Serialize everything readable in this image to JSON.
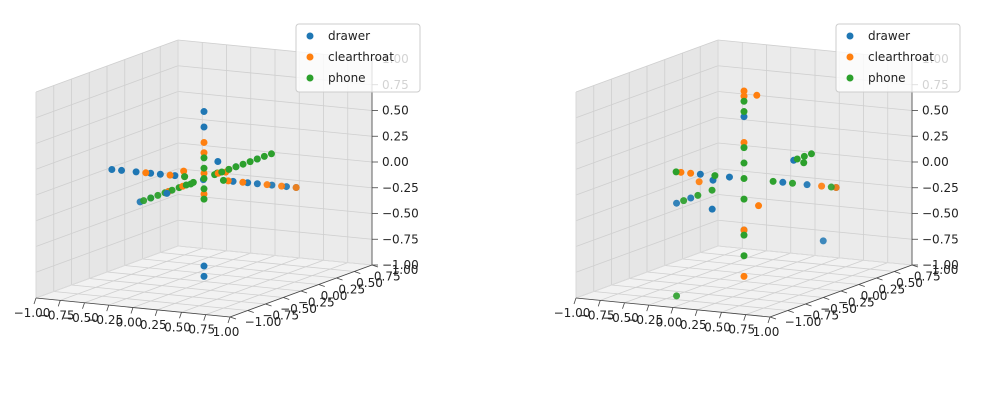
{
  "chart_data": [
    {
      "type": "scatter3d",
      "xlim": [
        -1,
        1
      ],
      "ylim": [
        -1,
        1
      ],
      "zlim": [
        -1,
        1
      ],
      "ticks": [
        -1.0,
        -0.75,
        -0.5,
        -0.25,
        0.0,
        0.25,
        0.5,
        0.75,
        1.0
      ],
      "tick_labels": [
        "−1.00",
        "−0.75",
        "−0.50",
        "−0.25",
        "0.00",
        "0.25",
        "0.50",
        "0.75",
        "1.00"
      ],
      "grid": true,
      "legend": {
        "placement": "top-right",
        "entries": [
          "drawer",
          "clearthroat",
          "phone"
        ]
      },
      "series": [
        {
          "name": "drawer",
          "color": "#1f77b4",
          "points": [
            [
              0.95,
              0,
              0
            ],
            [
              0.85,
              0,
              0
            ],
            [
              0.7,
              0,
              0
            ],
            [
              0.55,
              0,
              0
            ],
            [
              0.45,
              0,
              0
            ],
            [
              0.3,
              0,
              0
            ],
            [
              -0.95,
              0,
              0
            ],
            [
              -0.85,
              0,
              0
            ],
            [
              -0.7,
              0,
              0
            ],
            [
              -0.55,
              0,
              0
            ],
            [
              -0.45,
              0,
              0
            ],
            [
              -0.3,
              0,
              0
            ],
            [
              0,
              -0.9,
              0
            ],
            [
              0,
              -0.75,
              0
            ],
            [
              0,
              -0.5,
              0
            ],
            [
              0,
              0.45,
              0
            ],
            [
              0,
              0.75,
              0
            ],
            [
              0,
              0,
              0.65
            ],
            [
              0,
              0,
              0.5
            ],
            [
              0,
              0,
              -0.85
            ],
            [
              0,
              0,
              -0.95
            ],
            [
              -0.15,
              0.4,
              0.05
            ],
            [
              0.25,
              -0.35,
              0.1
            ],
            [
              -0.2,
              -0.25,
              -0.1
            ]
          ]
        },
        {
          "name": "clearthroat",
          "color": "#ff7f0e",
          "points": [
            [
              0.95,
              0,
              0
            ],
            [
              0.8,
              0,
              0
            ],
            [
              0.65,
              0,
              0
            ],
            [
              0.4,
              0,
              0
            ],
            [
              0.25,
              0,
              0
            ],
            [
              -0.6,
              0,
              0
            ],
            [
              -0.35,
              0,
              0
            ],
            [
              -0.2,
              0,
              0
            ],
            [
              0,
              0,
              0.35
            ],
            [
              0,
              0,
              0.25
            ],
            [
              0,
              0,
              0.05
            ],
            [
              0,
              0,
              -0.15
            ],
            [
              0,
              0.2,
              0
            ],
            [
              0,
              0.35,
              0
            ],
            [
              0,
              -0.3,
              0
            ],
            [
              0,
              -0.5,
              0
            ],
            [
              0.15,
              0.1,
              0.05
            ],
            [
              -0.1,
              -0.15,
              0.1
            ]
          ]
        },
        {
          "name": "phone",
          "color": "#2ca02c",
          "points": [
            [
              0,
              0.95,
              0
            ],
            [
              0,
              0.85,
              0
            ],
            [
              0,
              0.75,
              0
            ],
            [
              0,
              0.65,
              0
            ],
            [
              0,
              0.55,
              0
            ],
            [
              0,
              0.45,
              0
            ],
            [
              0,
              0.35,
              0
            ],
            [
              0,
              0.25,
              0
            ],
            [
              0,
              0.15,
              0
            ],
            [
              0,
              -0.85,
              0
            ],
            [
              0,
              -0.75,
              0
            ],
            [
              0,
              -0.65,
              0
            ],
            [
              0,
              -0.55,
              0
            ],
            [
              0,
              -0.45,
              0
            ],
            [
              0,
              -0.35,
              0
            ],
            [
              0,
              -0.25,
              0
            ],
            [
              0,
              -0.15,
              0
            ],
            [
              0,
              0,
              0.2
            ],
            [
              0,
              0,
              0.1
            ],
            [
              0,
              0,
              0
            ],
            [
              0,
              0,
              -0.1
            ],
            [
              0,
              0,
              -0.2
            ],
            [
              0.2,
              0,
              0
            ],
            [
              -0.2,
              0,
              0
            ],
            [
              0.1,
              0.05,
              0.05
            ],
            [
              -0.1,
              -0.05,
              -0.05
            ]
          ]
        }
      ]
    },
    {
      "type": "scatter3d",
      "xlim": [
        -1,
        1
      ],
      "ylim": [
        -1,
        1
      ],
      "zlim": [
        -1,
        1
      ],
      "ticks": [
        -1.0,
        -0.75,
        -0.5,
        -0.25,
        0.0,
        0.25,
        0.5,
        0.75,
        1.0
      ],
      "tick_labels": [
        "−1.00",
        "−0.75",
        "−0.50",
        "−0.25",
        "0.00",
        "0.25",
        "0.50",
        "0.75",
        "1.00"
      ],
      "grid": true,
      "legend": {
        "placement": "top-right",
        "entries": [
          "drawer",
          "clearthroat",
          "phone"
        ]
      },
      "series": [
        {
          "name": "drawer",
          "color": "#1f77b4",
          "points": [
            [
              0.95,
              0,
              0
            ],
            [
              0.65,
              0,
              0
            ],
            [
              0.4,
              0,
              0
            ],
            [
              -0.45,
              0,
              0
            ],
            [
              -0.15,
              0,
              0
            ],
            [
              0,
              -0.95,
              0
            ],
            [
              0,
              -0.75,
              0
            ],
            [
              0,
              0.7,
              0
            ],
            [
              0,
              0,
              0.6
            ],
            [
              0,
              0,
              -0.5
            ],
            [
              1,
              -0.25,
              -0.45
            ],
            [
              -0.95,
              0.85,
              -0.6
            ],
            [
              -0.1,
              -0.3,
              0.05
            ]
          ]
        },
        {
          "name": "clearthroat",
          "color": "#ff7f0e",
          "points": [
            [
              0.95,
              0,
              0
            ],
            [
              0.8,
              0,
              0
            ],
            [
              -0.65,
              0,
              0
            ],
            [
              -0.55,
              0,
              0
            ],
            [
              0,
              0,
              0.85
            ],
            [
              0,
              0,
              0.8
            ],
            [
              0,
              0,
              0.35
            ],
            [
              0,
              0,
              -0.5
            ],
            [
              0,
              0,
              -0.95
            ],
            [
              0.05,
              -0.7,
              0.15
            ],
            [
              -0.6,
              1,
              0.5
            ],
            [
              0.15,
              0,
              -0.25
            ]
          ]
        },
        {
          "name": "phone",
          "color": "#2ca02c",
          "points": [
            [
              0.9,
              0,
              0
            ],
            [
              0.5,
              0,
              0
            ],
            [
              0.3,
              0,
              0
            ],
            [
              -0.7,
              0,
              0
            ],
            [
              -0.3,
              0,
              0
            ],
            [
              0,
              0.95,
              0
            ],
            [
              0,
              0.85,
              0
            ],
            [
              0,
              0.75,
              0
            ],
            [
              0,
              -0.45,
              0
            ],
            [
              0,
              -0.65,
              0
            ],
            [
              0,
              -0.85,
              0
            ],
            [
              0,
              0,
              0.75
            ],
            [
              0,
              0,
              0.65
            ],
            [
              0,
              0,
              0.3
            ],
            [
              0,
              0,
              0.15
            ],
            [
              0,
              0,
              0
            ],
            [
              0,
              0,
              -0.2
            ],
            [
              0,
              0,
              -0.55
            ],
            [
              0,
              0,
              -0.75
            ],
            [
              0,
              -0.95,
              -0.9
            ],
            [
              0.25,
              0.5,
              0.05
            ]
          ]
        }
      ]
    }
  ]
}
